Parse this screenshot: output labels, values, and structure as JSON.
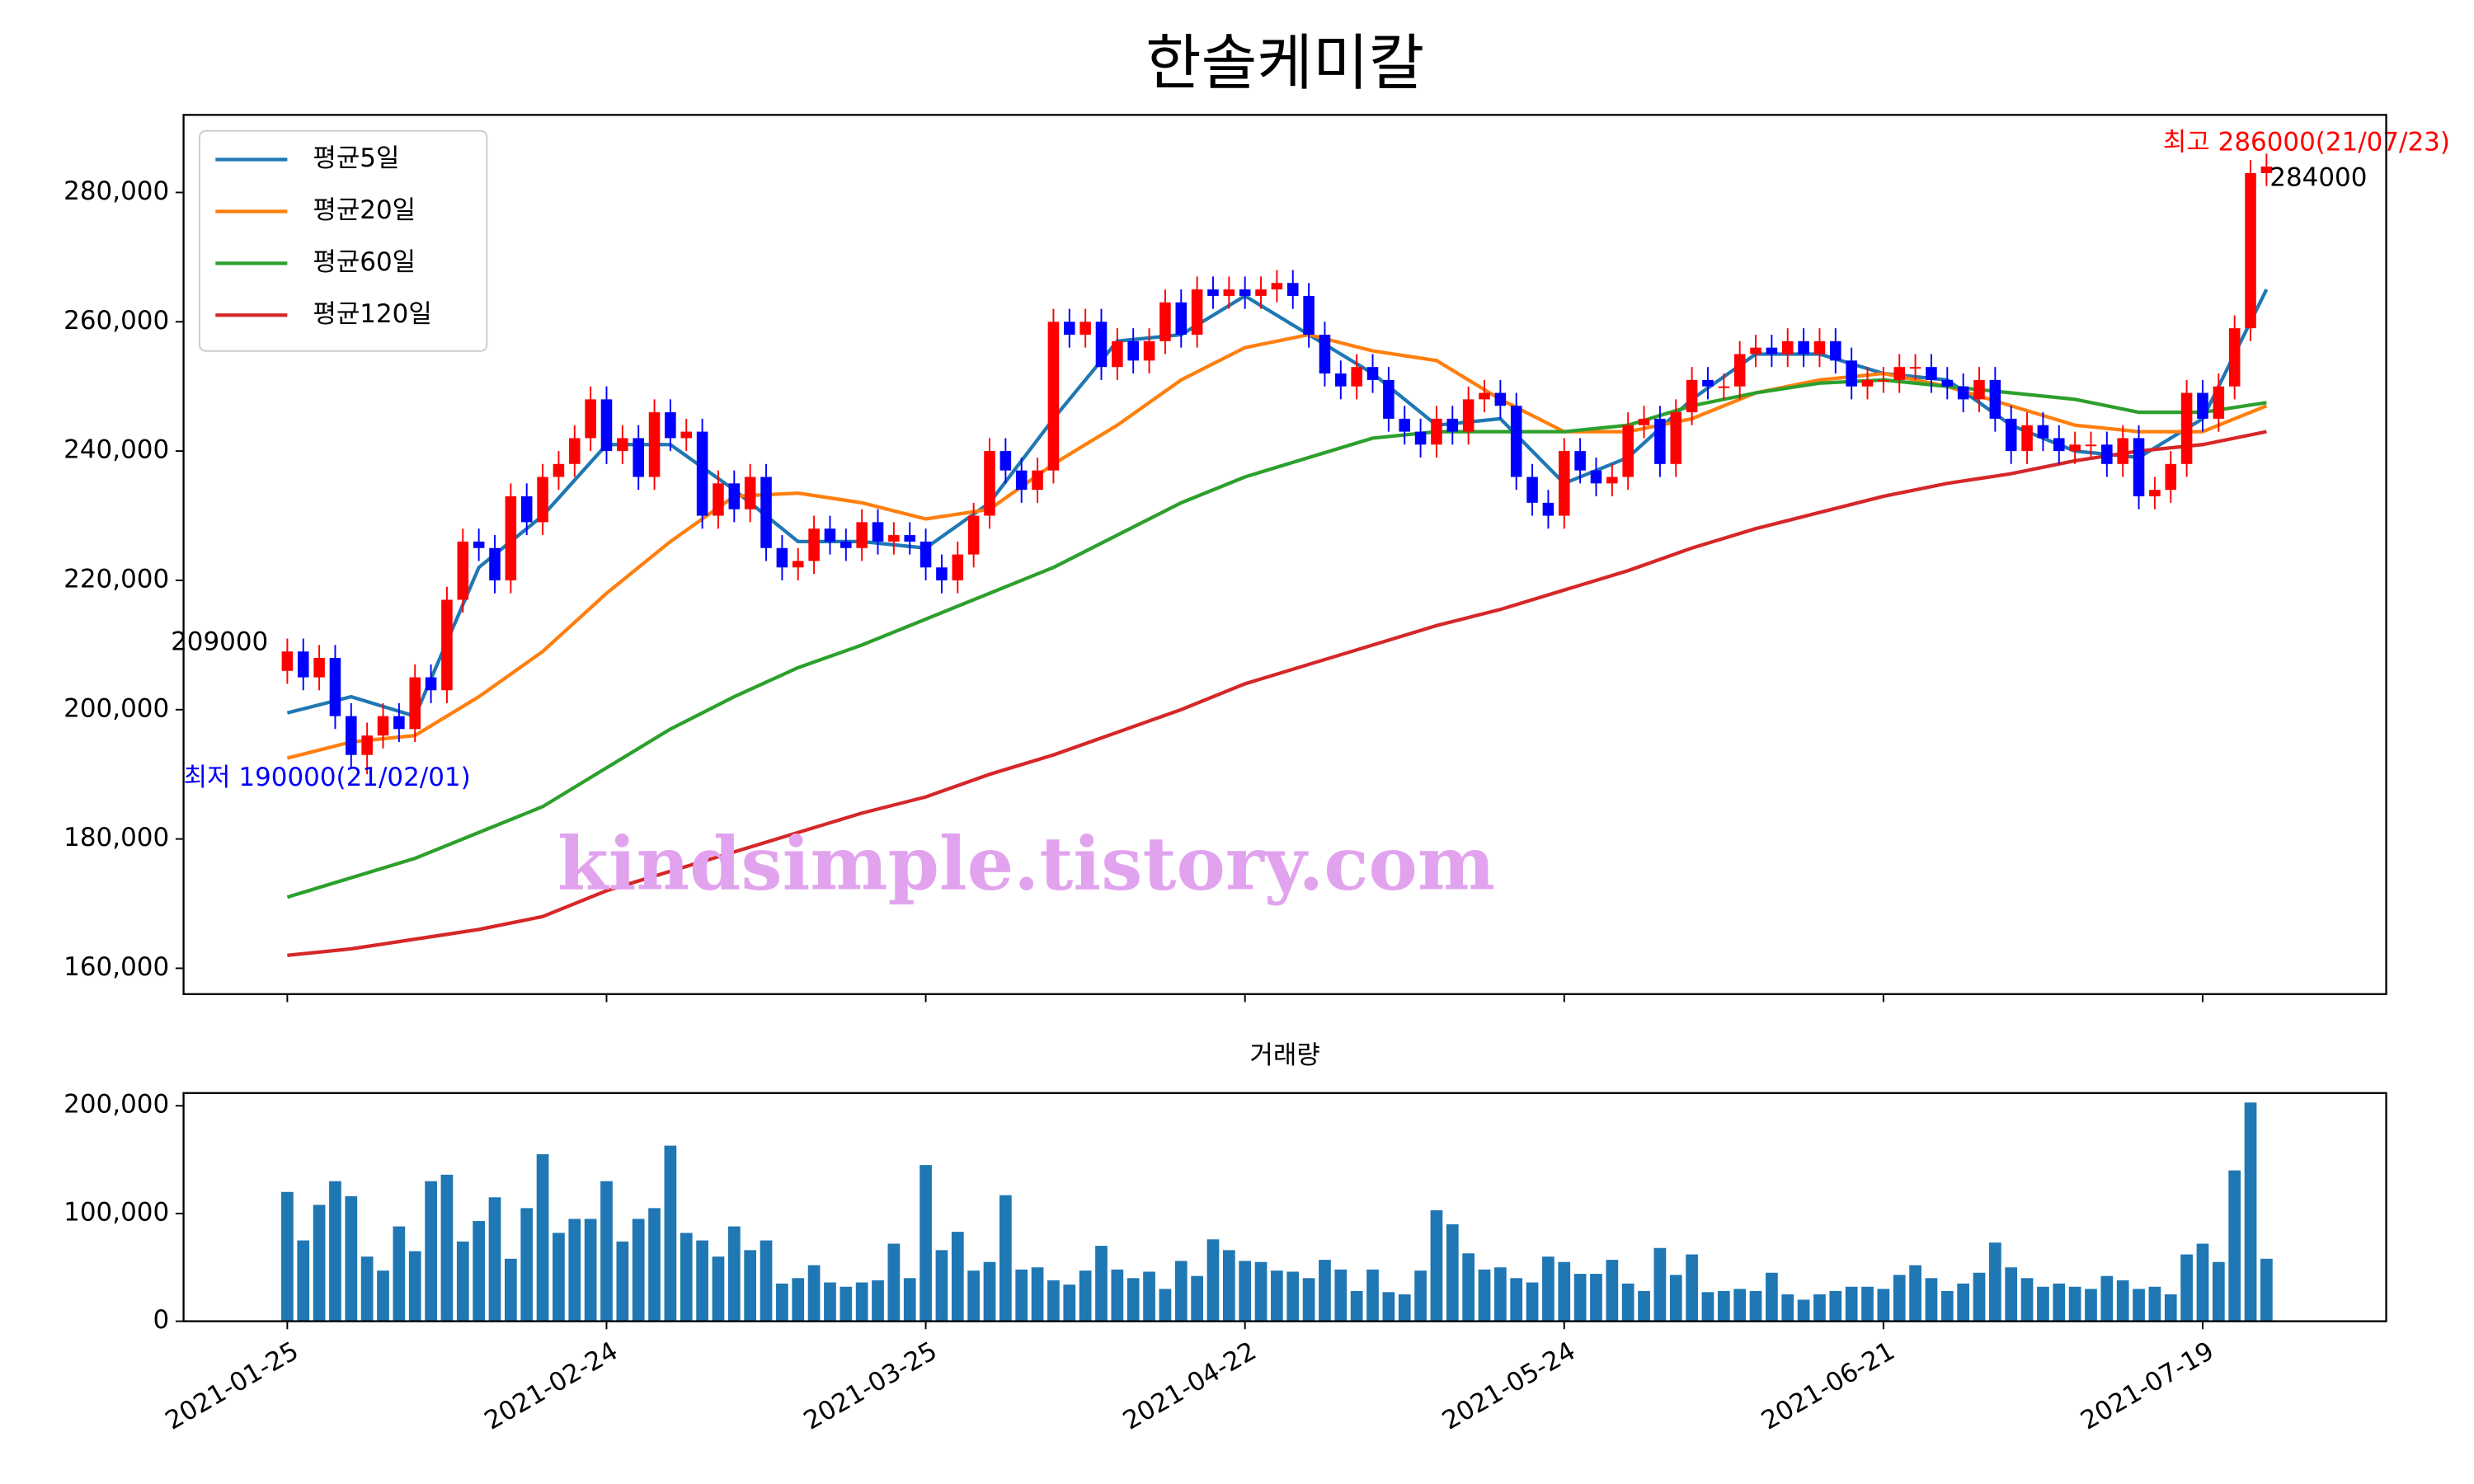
{
  "chart_data": [
    {
      "type": "candlestick",
      "title": "한솔케미칼",
      "watermark": "kindsimple.tistory.com",
      "up_color": "#ff0000",
      "down_color": "#0000ff",
      "open": [
        206000,
        209000,
        205000,
        208000,
        199000,
        193000,
        196000,
        199000,
        197000,
        205000,
        203000,
        217000,
        226000,
        225000,
        220000,
        233000,
        229000,
        236000,
        238000,
        242000,
        248000,
        240000,
        242000,
        236000,
        246000,
        242000,
        243000,
        230000,
        235000,
        231000,
        236000,
        225000,
        222000,
        223000,
        228000,
        226000,
        225000,
        229000,
        226000,
        227000,
        226000,
        222000,
        220000,
        224000,
        230000,
        240000,
        237000,
        234000,
        237000,
        260000,
        258000,
        260000,
        253000,
        257000,
        254000,
        257000,
        263000,
        258000,
        265000,
        264000,
        265000,
        264000,
        265000,
        266000,
        264000,
        258000,
        252000,
        250000,
        253000,
        251000,
        245000,
        243000,
        241000,
        245000,
        243000,
        248000,
        249000,
        247000,
        236000,
        232000,
        230000,
        240000,
        237000,
        235000,
        236000,
        244000,
        245000,
        238000,
        246000,
        251000,
        250000,
        250000,
        255000,
        256000,
        255000,
        257000,
        255000,
        257000,
        254000,
        250000,
        251000,
        251000,
        253000,
        253000,
        251000,
        250000,
        248000,
        251000,
        245000,
        240000,
        244000,
        242000,
        240000,
        241000,
        241000,
        238000,
        242000,
        233000,
        234000,
        238000,
        249000,
        245000,
        250000,
        259000,
        283000
      ],
      "high": [
        211000,
        211000,
        210000,
        210000,
        201000,
        198000,
        201000,
        201000,
        207000,
        207000,
        219000,
        228000,
        228000,
        227000,
        235000,
        235000,
        238000,
        240000,
        244000,
        250000,
        250000,
        244000,
        244000,
        248000,
        248000,
        245000,
        245000,
        237000,
        237000,
        238000,
        238000,
        227000,
        225000,
        230000,
        230000,
        228000,
        231000,
        231000,
        229000,
        229000,
        228000,
        224000,
        226000,
        232000,
        242000,
        242000,
        239000,
        239000,
        262000,
        262000,
        262000,
        262000,
        259000,
        259000,
        259000,
        265000,
        265000,
        267000,
        267000,
        267000,
        267000,
        267000,
        268000,
        268000,
        266000,
        260000,
        254000,
        255000,
        255000,
        253000,
        247000,
        245000,
        247000,
        247000,
        250000,
        251000,
        251000,
        249000,
        238000,
        234000,
        242000,
        242000,
        239000,
        238000,
        246000,
        247000,
        247000,
        248000,
        253000,
        253000,
        252000,
        257000,
        258000,
        258000,
        259000,
        259000,
        259000,
        259000,
        256000,
        253000,
        253000,
        255000,
        255000,
        255000,
        253000,
        252000,
        253000,
        253000,
        247000,
        246000,
        246000,
        244000,
        243000,
        243000,
        243000,
        244000,
        244000,
        236000,
        240000,
        251000,
        251000,
        252000,
        261000,
        285000,
        286000
      ],
      "low": [
        204000,
        203000,
        203000,
        197000,
        191000,
        190000,
        194000,
        195000,
        195000,
        201000,
        201000,
        215000,
        223000,
        218000,
        218000,
        227000,
        227000,
        234000,
        236000,
        240000,
        238000,
        238000,
        234000,
        234000,
        240000,
        240000,
        228000,
        228000,
        229000,
        229000,
        223000,
        220000,
        220000,
        221000,
        224000,
        223000,
        223000,
        224000,
        224000,
        224000,
        220000,
        218000,
        218000,
        222000,
        228000,
        235000,
        232000,
        232000,
        235000,
        256000,
        256000,
        251000,
        251000,
        252000,
        252000,
        255000,
        256000,
        256000,
        262000,
        262000,
        262000,
        262000,
        263000,
        262000,
        256000,
        250000,
        248000,
        248000,
        249000,
        243000,
        241000,
        239000,
        239000,
        241000,
        241000,
        246000,
        245000,
        234000,
        230000,
        228000,
        228000,
        235000,
        233000,
        233000,
        234000,
        242000,
        236000,
        236000,
        244000,
        248000,
        248000,
        248000,
        253000,
        253000,
        253000,
        253000,
        253000,
        252000,
        248000,
        248000,
        249000,
        249000,
        251000,
        249000,
        248000,
        246000,
        246000,
        243000,
        238000,
        238000,
        240000,
        238000,
        238000,
        239000,
        236000,
        236000,
        231000,
        231000,
        232000,
        236000,
        243000,
        243000,
        248000,
        257000,
        281000
      ],
      "close": [
        209000,
        205000,
        208000,
        199000,
        193000,
        196000,
        199000,
        197000,
        205000,
        203000,
        217000,
        226000,
        225000,
        220000,
        233000,
        229000,
        236000,
        238000,
        242000,
        248000,
        240000,
        242000,
        236000,
        246000,
        242000,
        243000,
        230000,
        235000,
        231000,
        236000,
        225000,
        222000,
        223000,
        228000,
        226000,
        225000,
        229000,
        226000,
        227000,
        226000,
        222000,
        220000,
        224000,
        230000,
        240000,
        237000,
        234000,
        237000,
        260000,
        258000,
        260000,
        253000,
        257000,
        254000,
        257000,
        263000,
        258000,
        265000,
        264000,
        265000,
        264000,
        265000,
        266000,
        264000,
        258000,
        252000,
        250000,
        253000,
        251000,
        245000,
        243000,
        241000,
        245000,
        243000,
        248000,
        249000,
        247000,
        236000,
        232000,
        230000,
        240000,
        237000,
        235000,
        236000,
        244000,
        245000,
        238000,
        246000,
        251000,
        250000,
        250000,
        255000,
        256000,
        255000,
        257000,
        255000,
        257000,
        254000,
        250000,
        251000,
        251000,
        253000,
        253000,
        251000,
        250000,
        248000,
        251000,
        245000,
        240000,
        244000,
        242000,
        240000,
        241000,
        241000,
        238000,
        242000,
        233000,
        234000,
        238000,
        249000,
        245000,
        250000,
        259000,
        283000,
        284000
      ],
      "moving_averages": {
        "x": [
          0,
          4,
          8,
          12,
          16,
          20,
          24,
          28,
          32,
          36,
          40,
          44,
          48,
          52,
          56,
          60,
          64,
          68,
          72,
          76,
          80,
          84,
          88,
          92,
          96,
          100,
          104,
          108,
          112,
          116,
          120,
          124
        ],
        "series": [
          {
            "name": "평균5일",
            "color": "#1f77b4",
            "values": [
              199500,
              202000,
              199000,
              222000,
              230000,
              241000,
              241000,
              234000,
              226000,
              226000,
              225000,
              232000,
              245000,
              257000,
              258000,
              264000,
              258000,
              252000,
              244000,
              245000,
              235000,
              239000,
              248000,
              255000,
              255000,
              252000,
              251000,
              244000,
              240000,
              239000,
              245000,
              265000
            ]
          },
          {
            "name": "평균20일",
            "color": "#ff7f0e",
            "values": [
              192500,
              195000,
              196000,
              202000,
              209000,
              218000,
              226000,
              233000,
              233500,
              232000,
              229500,
              231000,
              238000,
              244000,
              251000,
              256000,
              258000,
              255500,
              254000,
              248000,
              243000,
              243000,
              245000,
              249000,
              251000,
              252000,
              250000,
              247000,
              244000,
              243000,
              243000,
              247000
            ]
          },
          {
            "name": "평균60일",
            "color": "#2ca02c",
            "values": [
              171000,
              174000,
              177000,
              181000,
              185000,
              191000,
              197000,
              202000,
              206500,
              210000,
              214000,
              218000,
              222000,
              227000,
              232000,
              236000,
              239000,
              242000,
              243000,
              243000,
              243000,
              244000,
              247000,
              249000,
              250500,
              251000,
              250000,
              249000,
              248000,
              246000,
              246000,
              247500
            ]
          },
          {
            "name": "평균120일",
            "color": "#d62728",
            "values": [
              162000,
              163000,
              164500,
              166000,
              168000,
              172000,
              175000,
              178000,
              181000,
              184000,
              186500,
              190000,
              193000,
              196500,
              200000,
              204000,
              207000,
              210000,
              213000,
              215500,
              218500,
              221500,
              225000,
              228000,
              230500,
              233000,
              235000,
              236500,
              238500,
              240000,
              241000,
              243000
            ]
          }
        ]
      },
      "legend": "upper left",
      "annotations": [
        {
          "text": "최저 190000(21/02/01)",
          "color": "#0000ff"
        },
        {
          "text": "최고 286000(21/07/23)",
          "color": "#ff0000"
        }
      ],
      "ylim": [
        156000,
        292000
      ],
      "yticks": [
        {
          "value": 160000,
          "label": "160,000"
        },
        {
          "value": 180000,
          "label": "180,000"
        },
        {
          "value": 200000,
          "label": "200,000"
        },
        {
          "value": 220000,
          "label": "220,000"
        },
        {
          "value": 240000,
          "label": "240,000"
        },
        {
          "value": 260000,
          "label": "260,000"
        },
        {
          "value": 280000,
          "label": "280,000"
        }
      ]
    },
    {
      "type": "bar",
      "title": "거래량",
      "color": "#1f77b4",
      "categories": [
        "2021-01-25",
        null,
        null,
        null,
        null,
        null,
        null,
        null,
        null,
        null,
        null,
        null,
        null,
        null,
        null,
        null,
        null,
        null,
        null,
        null,
        "2021-02-24",
        null,
        null,
        null,
        null,
        null,
        null,
        null,
        null,
        null,
        null,
        null,
        null,
        null,
        null,
        null,
        null,
        null,
        null,
        null,
        "2021-03-25",
        null,
        null,
        null,
        null,
        null,
        null,
        null,
        null,
        null,
        null,
        null,
        null,
        null,
        null,
        null,
        null,
        null,
        null,
        null,
        "2021-04-22",
        null,
        null,
        null,
        null,
        null,
        null,
        null,
        null,
        null,
        null,
        null,
        null,
        null,
        null,
        null,
        null,
        null,
        null,
        null,
        "2021-05-24",
        null,
        null,
        null,
        null,
        null,
        null,
        null,
        null,
        null,
        null,
        null,
        null,
        null,
        null,
        null,
        null,
        null,
        null,
        null,
        "2021-06-21",
        null,
        null,
        null,
        null,
        null,
        null,
        null,
        null,
        null,
        null,
        null,
        null,
        null,
        null,
        null,
        null,
        null,
        null,
        null,
        "2021-07-19",
        null,
        null,
        null,
        null
      ],
      "values": [
        120000,
        75000,
        108000,
        130000,
        116000,
        60000,
        47000,
        88000,
        65000,
        130000,
        136000,
        74000,
        93000,
        115000,
        58000,
        105000,
        155000,
        82000,
        95000,
        95000,
        130000,
        74000,
        95000,
        105000,
        163000,
        82000,
        75000,
        60000,
        88000,
        66000,
        75000,
        35000,
        40000,
        52000,
        36000,
        32000,
        36000,
        38000,
        72000,
        40000,
        145000,
        66000,
        83000,
        47000,
        55000,
        117000,
        48000,
        50000,
        38000,
        34000,
        47000,
        70000,
        48000,
        40000,
        46000,
        30000,
        56000,
        42000,
        76000,
        66000,
        56000,
        55000,
        47000,
        46000,
        40000,
        57000,
        48000,
        28000,
        48000,
        27000,
        25000,
        47000,
        103000,
        90000,
        63000,
        48000,
        50000,
        40000,
        36000,
        60000,
        55000,
        44000,
        44000,
        57000,
        35000,
        28000,
        68000,
        43000,
        62000,
        27000,
        28000,
        30000,
        28000,
        45000,
        25000,
        20000,
        25000,
        28000,
        32000,
        32000,
        30000,
        43000,
        52000,
        40000,
        28000,
        35000,
        45000,
        73000,
        50000,
        40000,
        32000,
        35000,
        32000,
        30000,
        42000,
        38000,
        30000,
        32000,
        25000,
        62000,
        72000,
        55000,
        140000,
        203000,
        58000
      ],
      "ylim": [
        0,
        211800
      ],
      "yticks": [
        0,
        {
          "value": 100000,
          "label": "100,000"
        },
        {
          "value": 200000,
          "label": "200,000"
        }
      ]
    }
  ]
}
